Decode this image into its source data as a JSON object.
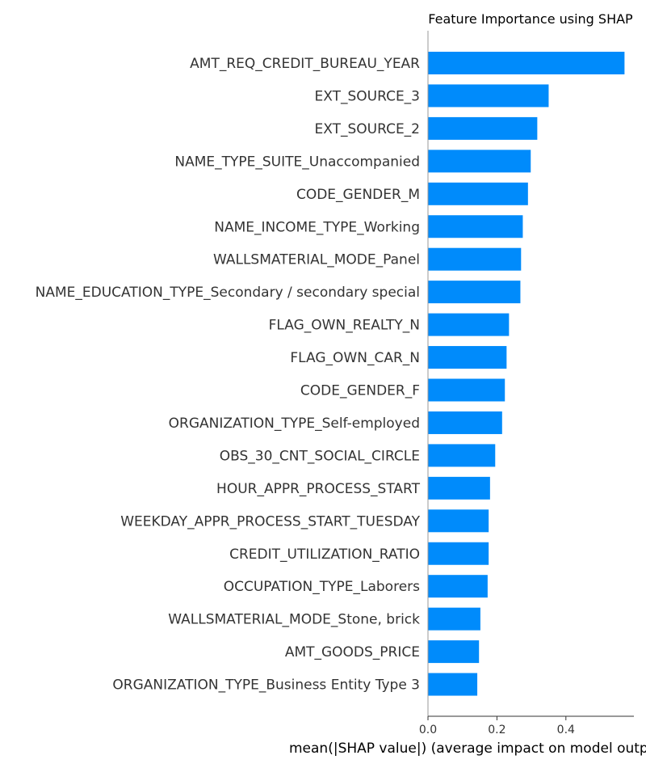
{
  "chart_data": {
    "type": "bar",
    "orientation": "horizontal",
    "title": "Feature Importance using SHAP",
    "xlabel": "mean(|SHAP value|) (average impact on model output magnitude)",
    "ylabel": "",
    "xlim": [
      0,
      0.6
    ],
    "xticks": [
      0.0,
      0.2,
      0.4
    ],
    "xtick_labels": [
      "0.0",
      "0.2",
      "0.4"
    ],
    "grid": false,
    "bar_color": "#008bfb",
    "series": [
      {
        "name": "mean(|SHAP value|)",
        "categories": [
          "AMT_REQ_CREDIT_BUREAU_YEAR",
          "EXT_SOURCE_3",
          "EXT_SOURCE_2",
          "NAME_TYPE_SUITE_Unaccompanied",
          "CODE_GENDER_M",
          "NAME_INCOME_TYPE_Working",
          "WALLSMATERIAL_MODE_Panel",
          "NAME_EDUCATION_TYPE_Secondary / secondary special",
          "FLAG_OWN_REALTY_N",
          "FLAG_OWN_CAR_N",
          "CODE_GENDER_F",
          "ORGANIZATION_TYPE_Self-employed",
          "OBS_30_CNT_SOCIAL_CIRCLE",
          "HOUR_APPR_PROCESS_START",
          "WEEKDAY_APPR_PROCESS_START_TUESDAY",
          "CREDIT_UTILIZATION_RATIO",
          "OCCUPATION_TYPE_Laborers",
          "WALLSMATERIAL_MODE_Stone, brick",
          "AMT_GOODS_PRICE",
          "ORGANIZATION_TYPE_Business Entity Type 3"
        ],
        "values": [
          0.57,
          0.35,
          0.317,
          0.298,
          0.29,
          0.275,
          0.27,
          0.268,
          0.235,
          0.228,
          0.223,
          0.215,
          0.195,
          0.18,
          0.176,
          0.176,
          0.173,
          0.152,
          0.148,
          0.143
        ]
      }
    ]
  }
}
